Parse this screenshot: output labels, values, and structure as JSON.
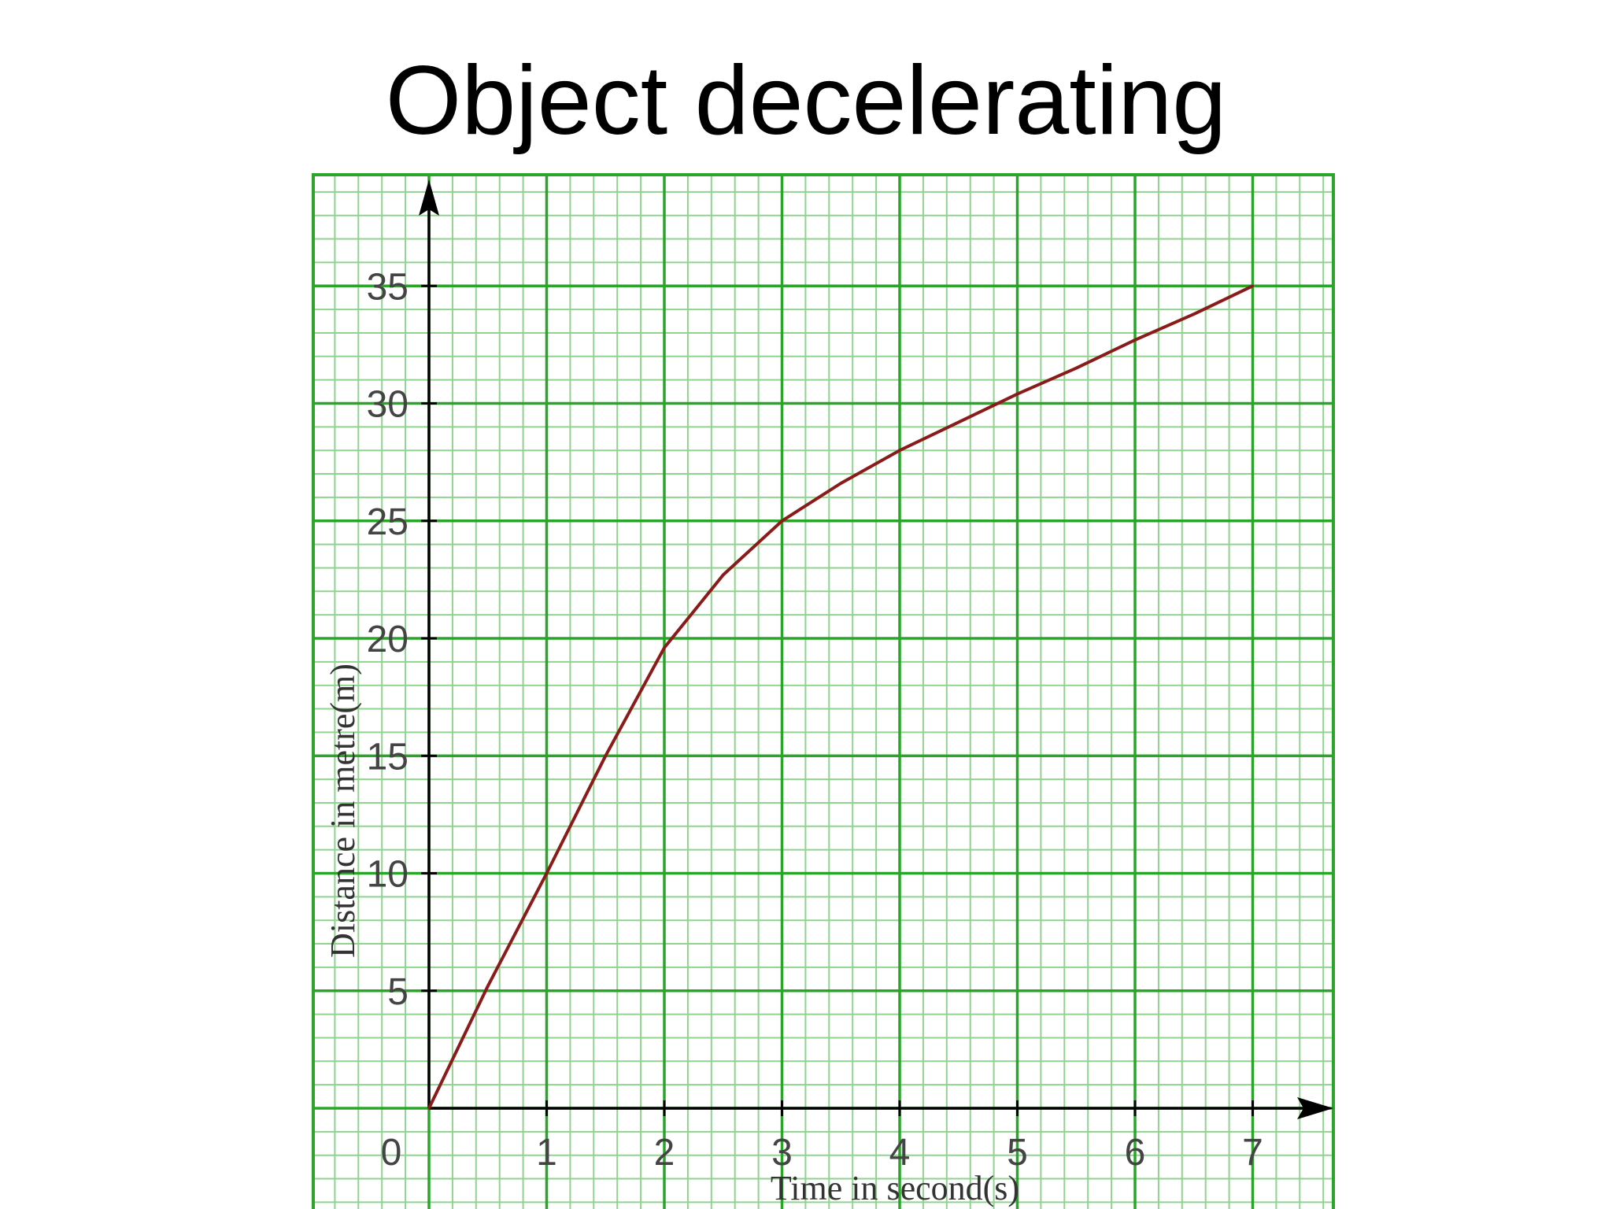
{
  "slide": {
    "title": "Object decelerating"
  },
  "chart_data": {
    "type": "line",
    "title": "",
    "xlabel": "Time in second(s)",
    "ylabel": "Distance in metre(m)",
    "xlim": [
      0,
      7
    ],
    "ylim": [
      0,
      35
    ],
    "x_ticks": [
      "1",
      "2",
      "3",
      "4",
      "5",
      "6",
      "7"
    ],
    "y_ticks": [
      "5",
      "10",
      "15",
      "20",
      "25",
      "30",
      "35"
    ],
    "origin_label": "0",
    "grid": true,
    "series": [
      {
        "color": "#8b1a1a",
        "x": [
          0,
          0.5,
          1,
          1.5,
          2,
          2.5,
          3,
          3.5,
          4,
          4.5,
          5,
          5.5,
          6,
          6.5,
          7
        ],
        "y": [
          0,
          5.2,
          10,
          15,
          19.6,
          22.7,
          25,
          26.6,
          28,
          29.2,
          30.4,
          31.5,
          32.7,
          33.8,
          35
        ]
      }
    ],
    "colors": {
      "grid_major": "#2aa52a",
      "grid_minor": "#8fd38f",
      "axis": "#000000",
      "line": "#8b1a1a"
    }
  }
}
